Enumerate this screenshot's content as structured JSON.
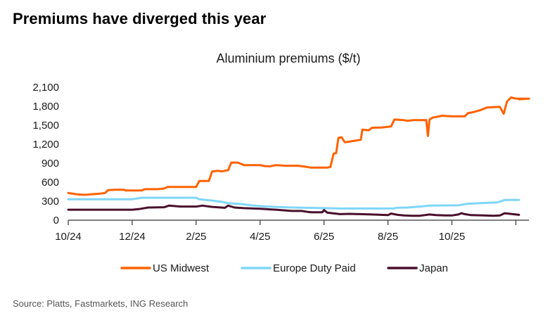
{
  "headline": "Premiums have diverged this year",
  "source": "Source: Platts, Fastmarkets, ING Research",
  "chart_data": {
    "type": "line",
    "title": "Aluminium premiums ($/t)",
    "xlabel": "",
    "ylabel": "",
    "ylim": [
      0,
      2100
    ],
    "y_ticks": [
      0,
      300,
      600,
      900,
      1200,
      1500,
      1800,
      2100
    ],
    "y_tick_labels": [
      "0",
      "300",
      "600",
      "900",
      "1,200",
      "1,500",
      "1,800",
      "2,100"
    ],
    "x_ticks": [
      0,
      2,
      4,
      6,
      8,
      10,
      12,
      14
    ],
    "x_tick_labels": [
      "10/24",
      "12/24",
      "2/25",
      "4/25",
      "6/25",
      "8/25",
      "10/25",
      ""
    ],
    "xlim": [
      0,
      14.1
    ],
    "grid": false,
    "legend_position": "bottom",
    "series": [
      {
        "name": "US Midwest",
        "color": "#ff6200",
        "points": [
          [
            0,
            430
          ],
          [
            0.25,
            410
          ],
          [
            0.5,
            400
          ],
          [
            1.0,
            420
          ],
          [
            1.15,
            430
          ],
          [
            1.25,
            475
          ],
          [
            1.45,
            480
          ],
          [
            1.75,
            480
          ],
          [
            1.8,
            470
          ],
          [
            2.0,
            470
          ],
          [
            2.3,
            470
          ],
          [
            2.4,
            490
          ],
          [
            2.8,
            490
          ],
          [
            3.0,
            500
          ],
          [
            3.1,
            525
          ],
          [
            3.5,
            525
          ],
          [
            4.0,
            525
          ],
          [
            4.1,
            620
          ],
          [
            4.4,
            620
          ],
          [
            4.5,
            770
          ],
          [
            4.7,
            780
          ],
          [
            4.8,
            770
          ],
          [
            5.0,
            790
          ],
          [
            5.1,
            910
          ],
          [
            5.3,
            910
          ],
          [
            5.5,
            870
          ],
          [
            6.0,
            870
          ],
          [
            6.15,
            855
          ],
          [
            6.3,
            850
          ],
          [
            6.5,
            870
          ],
          [
            6.8,
            860
          ],
          [
            7.2,
            860
          ],
          [
            7.4,
            845
          ],
          [
            7.6,
            830
          ],
          [
            8.1,
            830
          ],
          [
            8.2,
            840
          ],
          [
            8.3,
            1050
          ],
          [
            8.38,
            1060
          ],
          [
            8.45,
            1300
          ],
          [
            8.55,
            1310
          ],
          [
            8.65,
            1230
          ],
          [
            8.9,
            1250
          ],
          [
            9.15,
            1270
          ],
          [
            9.2,
            1430
          ],
          [
            9.4,
            1420
          ],
          [
            9.5,
            1460
          ],
          [
            9.8,
            1465
          ],
          [
            10.1,
            1480
          ],
          [
            10.2,
            1590
          ],
          [
            10.5,
            1580
          ],
          [
            10.6,
            1570
          ],
          [
            10.8,
            1580
          ],
          [
            11.2,
            1580
          ],
          [
            11.25,
            1330
          ],
          [
            11.3,
            1590
          ],
          [
            11.4,
            1620
          ],
          [
            11.7,
            1650
          ],
          [
            12.0,
            1640
          ],
          [
            12.4,
            1640
          ],
          [
            12.5,
            1690
          ],
          [
            12.7,
            1710
          ],
          [
            12.9,
            1740
          ],
          [
            13.1,
            1780
          ],
          [
            13.5,
            1790
          ],
          [
            13.62,
            1680
          ],
          [
            13.72,
            1870
          ],
          [
            13.85,
            1940
          ],
          [
            14.0,
            1920
          ],
          [
            14.5,
            1920
          ],
          [
            14.1,
            1910
          ]
        ]
      },
      {
        "name": "Europe Duty Paid",
        "color": "#7fd6f8",
        "points": [
          [
            0,
            330
          ],
          [
            1.0,
            330
          ],
          [
            2.0,
            330
          ],
          [
            2.3,
            355
          ],
          [
            3.0,
            355
          ],
          [
            4.0,
            355
          ],
          [
            4.1,
            330
          ],
          [
            4.5,
            310
          ],
          [
            4.8,
            290
          ],
          [
            5.0,
            270
          ],
          [
            5.5,
            250
          ],
          [
            5.8,
            230
          ],
          [
            6.2,
            215
          ],
          [
            6.5,
            210
          ],
          [
            7.0,
            200
          ],
          [
            7.5,
            195
          ],
          [
            8.0,
            190
          ],
          [
            8.5,
            185
          ],
          [
            9.5,
            185
          ],
          [
            10.2,
            185
          ],
          [
            10.25,
            195
          ],
          [
            10.6,
            200
          ],
          [
            11.0,
            215
          ],
          [
            11.3,
            230
          ],
          [
            12.2,
            235
          ],
          [
            12.5,
            260
          ],
          [
            12.9,
            270
          ],
          [
            13.4,
            280
          ],
          [
            13.55,
            300
          ],
          [
            13.65,
            320
          ],
          [
            14.1,
            320
          ]
        ]
      },
      {
        "name": "Japan",
        "color": "#4a0f2b",
        "points": [
          [
            0,
            165
          ],
          [
            1.0,
            165
          ],
          [
            2.0,
            165
          ],
          [
            2.2,
            175
          ],
          [
            2.5,
            200
          ],
          [
            3.0,
            205
          ],
          [
            3.15,
            230
          ],
          [
            3.5,
            215
          ],
          [
            4.0,
            215
          ],
          [
            4.2,
            230
          ],
          [
            4.5,
            210
          ],
          [
            4.9,
            195
          ],
          [
            5.0,
            230
          ],
          [
            5.2,
            200
          ],
          [
            5.5,
            190
          ],
          [
            6.0,
            180
          ],
          [
            6.5,
            165
          ],
          [
            7.0,
            145
          ],
          [
            7.3,
            145
          ],
          [
            7.5,
            130
          ],
          [
            7.6,
            125
          ],
          [
            7.95,
            125
          ],
          [
            8.0,
            160
          ],
          [
            8.1,
            120
          ],
          [
            8.5,
            95
          ],
          [
            8.8,
            100
          ],
          [
            9.5,
            90
          ],
          [
            10.0,
            80
          ],
          [
            10.1,
            105
          ],
          [
            10.3,
            85
          ],
          [
            10.5,
            75
          ],
          [
            10.75,
            70
          ],
          [
            11.0,
            70
          ],
          [
            11.3,
            90
          ],
          [
            11.5,
            80
          ],
          [
            11.8,
            75
          ],
          [
            12.0,
            75
          ],
          [
            12.2,
            90
          ],
          [
            12.3,
            110
          ],
          [
            12.4,
            95
          ],
          [
            12.6,
            80
          ],
          [
            13.0,
            75
          ],
          [
            13.3,
            70
          ],
          [
            13.5,
            75
          ],
          [
            13.65,
            110
          ],
          [
            13.9,
            95
          ],
          [
            14.0,
            90
          ],
          [
            14.1,
            85
          ]
        ]
      }
    ]
  }
}
